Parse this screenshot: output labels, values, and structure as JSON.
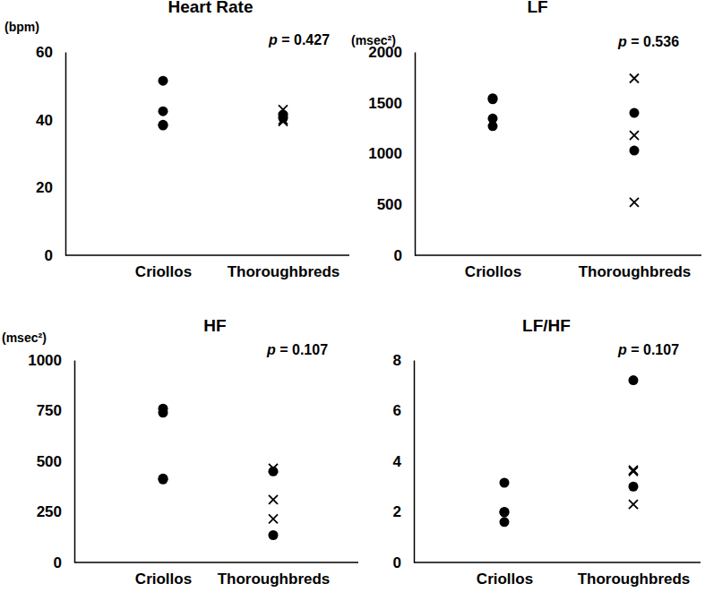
{
  "chart_data": [
    {
      "type": "scatter",
      "title": "Heart Rate",
      "y_label": "(bpm)",
      "annotation": "p = 0.427",
      "categories": [
        "Criollos",
        "Thoroughbreds"
      ],
      "ylim": [
        0,
        60
      ],
      "yticks": [
        0,
        20,
        40,
        60
      ],
      "series": [
        {
          "marker": "circle",
          "color": "#000000",
          "x": [
            "Criollos",
            "Criollos",
            "Criollos",
            "Criollos",
            "Thoroughbreds",
            "Thoroughbreds"
          ],
          "values": [
            51.5,
            42.5,
            38.5,
            38.3,
            41.5,
            40.5
          ]
        },
        {
          "marker": "x",
          "color": "#000000",
          "x": [
            "Thoroughbreds",
            "Thoroughbreds",
            "Thoroughbreds"
          ],
          "values": [
            43,
            40,
            39.5
          ]
        }
      ]
    },
    {
      "type": "scatter",
      "title": "LF",
      "y_label": "(msec²)",
      "annotation": "p = 0.536",
      "categories": [
        "Criollos",
        "Thoroughbreds"
      ],
      "ylim": [
        0,
        2000
      ],
      "yticks": [
        0,
        500,
        1000,
        1500,
        2000
      ],
      "series": [
        {
          "marker": "circle",
          "color": "#000000",
          "x": [
            "Criollos",
            "Criollos",
            "Criollos",
            "Criollos",
            "Thoroughbreds",
            "Thoroughbreds"
          ],
          "values": [
            1545,
            1535,
            1345,
            1270,
            1400,
            1030
          ]
        },
        {
          "marker": "x",
          "color": "#000000",
          "x": [
            "Thoroughbreds",
            "Thoroughbreds",
            "Thoroughbreds"
          ],
          "values": [
            1740,
            1180,
            520
          ]
        }
      ]
    },
    {
      "type": "scatter",
      "title": "HF",
      "y_label": "(msec²)",
      "annotation": "p = 0.107",
      "categories": [
        "Criollos",
        "Thoroughbreds"
      ],
      "ylim": [
        0,
        1000
      ],
      "yticks": [
        0,
        250,
        500,
        750,
        1000
      ],
      "series": [
        {
          "marker": "circle",
          "color": "#000000",
          "x": [
            "Criollos",
            "Criollos",
            "Criollos",
            "Criollos",
            "Thoroughbreds",
            "Thoroughbreds"
          ],
          "values": [
            760,
            740,
            415,
            410,
            450,
            135
          ]
        },
        {
          "marker": "x",
          "color": "#000000",
          "x": [
            "Thoroughbreds",
            "Thoroughbreds",
            "Thoroughbreds"
          ],
          "values": [
            465,
            310,
            215
          ]
        }
      ]
    },
    {
      "type": "scatter",
      "title": "LF/HF",
      "annotation": "p = 0.107",
      "categories": [
        "Criollos",
        "Thoroughbreds"
      ],
      "ylim": [
        0,
        8
      ],
      "yticks": [
        0,
        2,
        4,
        6,
        8
      ],
      "series": [
        {
          "marker": "circle",
          "color": "#000000",
          "x": [
            "Criollos",
            "Criollos",
            "Criollos",
            "Criollos",
            "Thoroughbreds",
            "Thoroughbreds"
          ],
          "values": [
            3.15,
            2.0,
            1.98,
            1.6,
            7.2,
            3.0
          ]
        },
        {
          "marker": "x",
          "color": "#000000",
          "x": [
            "Thoroughbreds",
            "Thoroughbreds",
            "Thoroughbreds"
          ],
          "values": [
            3.65,
            3.6,
            2.3
          ]
        }
      ]
    }
  ]
}
